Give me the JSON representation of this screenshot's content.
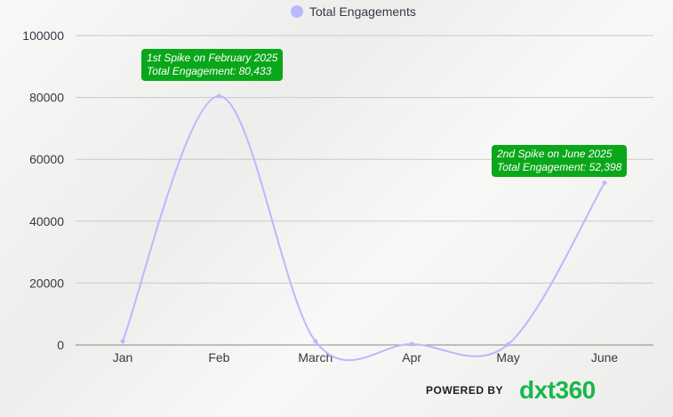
{
  "chart_data": {
    "type": "line",
    "categories": [
      "Jan",
      "Feb",
      "March",
      "Apr",
      "May",
      "June"
    ],
    "series": [
      {
        "name": "Total Engagements",
        "values": [
          1200,
          80433,
          1200,
          300,
          200,
          52398
        ]
      }
    ],
    "ylim": [
      0,
      100000
    ],
    "yticks": [
      "0",
      "20000",
      "40000",
      "60000",
      "80000",
      "100000"
    ],
    "grid": true,
    "legend": "top-center",
    "line_color": "#b9b9ff",
    "annotations": [
      {
        "line1": "1st Spike on February 2025",
        "line2": "Total Engagement:  80,433"
      },
      {
        "line1": "2nd Spike on June 2025",
        "line2": "Total Engagement: 52,398"
      }
    ],
    "annotation_color": "#0aa71a"
  },
  "legend_label": "Total Engagements",
  "footer": {
    "powered_by": "POWERED BY",
    "brand": "dxt360"
  }
}
